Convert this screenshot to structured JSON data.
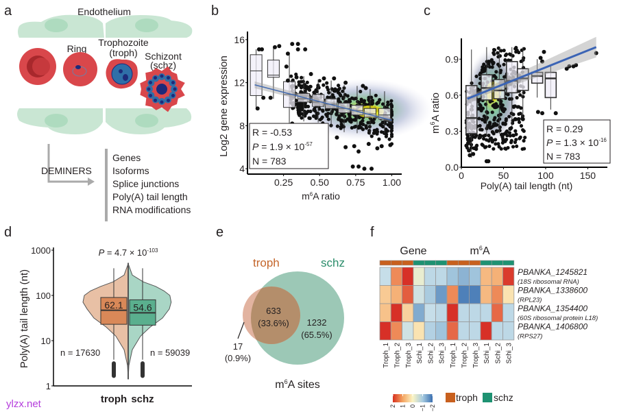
{
  "panels": {
    "a": {
      "label": "a",
      "endothelium_label": "Endothelium",
      "stages": [
        {
          "name": "uninfected",
          "label": ""
        },
        {
          "name": "ring",
          "label": "Ring"
        },
        {
          "name": "troph",
          "label": "Trophozoite",
          "sublabel": "(troph)"
        },
        {
          "name": "schz",
          "label": "Schizont",
          "sublabel": "(schz)"
        }
      ],
      "method_label": "DEMINERS",
      "outputs": [
        "Genes",
        "Isoforms",
        "Splice junctions",
        "Poly(A) tail length",
        "RNA modifications"
      ],
      "colors": {
        "endothelium": "#c9e6d3",
        "nucleus": "#a8d8b7",
        "rbc": "#d9474b",
        "parasite": "#2f6fa8",
        "arrow": "#aaaaaa"
      }
    },
    "b": {
      "label": "b"
    },
    "c": {
      "label": "c"
    },
    "d": {
      "label": "d"
    },
    "e": {
      "label": "e"
    },
    "f": {
      "label": "f"
    }
  },
  "watermark": "ylzx.net",
  "chart_data": [
    {
      "panel": "b",
      "type": "scatter",
      "xlabel": "m6A ratio",
      "xlabel_parts": {
        "pre": "m",
        "sup": "6",
        "post": "A ratio"
      },
      "ylabel": "Log2 gene expression",
      "xlim": [
        0.0,
        1.05
      ],
      "ylim": [
        3.5,
        16.5
      ],
      "xticks": [
        0.25,
        0.5,
        0.75,
        1.0
      ],
      "xtick_labels": [
        "0.25",
        "0.50",
        "0.75",
        "1.00"
      ],
      "yticks": [
        4,
        8,
        12,
        16
      ],
      "ytick_labels": [
        "4",
        "8",
        "12",
        "16"
      ],
      "boxes": [
        {
          "x": 0.06,
          "q1": 10.8,
          "median": 13.1,
          "q3": 14.6,
          "low": 9.5,
          "high": 15.1
        },
        {
          "x": 0.18,
          "q1": 12.5,
          "median": 12.7,
          "q3": 14.1,
          "low": 10.5,
          "high": 15.3
        },
        {
          "x": 0.29,
          "q1": 9.7,
          "median": 10.9,
          "q3": 12.1,
          "low": 8.2,
          "high": 14.7
        },
        {
          "x": 0.39,
          "q1": 10.2,
          "median": 10.5,
          "q3": 11.0,
          "low": 8.4,
          "high": 12.6
        },
        {
          "x": 0.49,
          "q1": 9.8,
          "median": 10.2,
          "q3": 10.9,
          "low": 8.3,
          "high": 12.3
        },
        {
          "x": 0.58,
          "q1": 9.6,
          "median": 10.0,
          "q3": 10.5,
          "low": 7.9,
          "high": 12.2
        },
        {
          "x": 0.67,
          "q1": 9.2,
          "median": 9.6,
          "q3": 10.1,
          "low": 7.4,
          "high": 11.8
        },
        {
          "x": 0.76,
          "q1": 9.0,
          "median": 9.4,
          "q3": 9.9,
          "low": 7.3,
          "high": 11.7
        },
        {
          "x": 0.85,
          "q1": 8.8,
          "median": 9.1,
          "q3": 9.6,
          "low": 7.1,
          "high": 11.4
        },
        {
          "x": 0.95,
          "q1": 8.6,
          "median": 9.0,
          "q3": 9.6,
          "low": 7.3,
          "high": 11.2
        }
      ],
      "trend": {
        "x": [
          0.05,
          1.0
        ],
        "y": [
          11.8,
          8.5
        ],
        "color": "#4169b0"
      },
      "outliers": [
        [
          0.08,
          15.1
        ],
        [
          0.1,
          15.1
        ],
        [
          0.07,
          9.6
        ],
        [
          0.11,
          10.6
        ],
        [
          0.19,
          15.3
        ],
        [
          0.16,
          10.6
        ],
        [
          0.22,
          15.4
        ],
        [
          0.31,
          15.6
        ],
        [
          0.35,
          15.6
        ],
        [
          0.35,
          15.1
        ],
        [
          0.4,
          15.1
        ],
        [
          0.28,
          14.7
        ],
        [
          0.27,
          13.5
        ],
        [
          0.28,
          12.2
        ],
        [
          0.34,
          12.5
        ],
        [
          0.44,
          12.8
        ],
        [
          0.53,
          12.4
        ],
        [
          0.6,
          12.4
        ],
        [
          0.68,
          12.0
        ],
        [
          0.8,
          11.7
        ],
        [
          0.82,
          11.5
        ],
        [
          0.35,
          9.7
        ],
        [
          0.31,
          8.2
        ],
        [
          0.5,
          7.4
        ],
        [
          0.62,
          6.9
        ],
        [
          0.68,
          6.0
        ],
        [
          0.74,
          6.1
        ],
        [
          0.77,
          5.6
        ],
        [
          0.84,
          6.3
        ],
        [
          0.9,
          5.9
        ],
        [
          0.93,
          6.1
        ],
        [
          0.99,
          6.2
        ],
        [
          0.73,
          4.2
        ],
        [
          0.77,
          4.2
        ],
        [
          0.81,
          4.0
        ],
        [
          0.86,
          4.0
        ]
      ],
      "annotation": {
        "r": "R = -0.53",
        "p_pre": " = 1.9 × 10",
        "p_exp": "-57",
        "n": "N = 783"
      }
    },
    {
      "panel": "c",
      "type": "scatter",
      "xlabel": "Poly(A) tail length (nt)",
      "ylabel": "m6A ratio",
      "ylabel_parts": {
        "pre": "m",
        "sup": "6",
        "post": "A  ratio"
      },
      "xlim": [
        0,
        170
      ],
      "ylim": [
        0.0,
        1.05
      ],
      "xticks": [
        0,
        50,
        100,
        150
      ],
      "xtick_labels": [
        "0",
        "50",
        "100",
        "150"
      ],
      "yticks": [
        0.0,
        0.3,
        0.6,
        0.9
      ],
      "ytick_labels": [
        "0.0",
        "0.3",
        "0.6",
        "0.9"
      ],
      "boxes": [
        {
          "x": 12,
          "q1": 0.28,
          "median": 0.41,
          "q3": 0.68,
          "low": 0.08,
          "high": 0.98
        },
        {
          "x": 30,
          "q1": 0.56,
          "median": 0.66,
          "q3": 0.77,
          "low": 0.26,
          "high": 1.0
        },
        {
          "x": 45,
          "q1": 0.57,
          "median": 0.64,
          "q3": 0.73,
          "low": 0.28,
          "high": 1.0
        },
        {
          "x": 60,
          "q1": 0.62,
          "median": 0.72,
          "q3": 0.88,
          "low": 0.34,
          "high": 1.0
        },
        {
          "x": 73,
          "q1": 0.64,
          "median": 0.74,
          "q3": 0.82,
          "low": 0.4,
          "high": 1.0
        },
        {
          "x": 90,
          "q1": 0.7,
          "median": 0.76,
          "q3": 0.79,
          "low": 0.58,
          "high": 0.9
        },
        {
          "x": 106,
          "q1": 0.58,
          "median": 0.74,
          "q3": 0.79,
          "low": 0.48,
          "high": 0.84
        }
      ],
      "trend": {
        "x": [
          7,
          160
        ],
        "y": [
          0.57,
          1.0
        ],
        "color": "#3b64b5"
      },
      "outliers": [
        [
          8,
          0.2
        ],
        [
          9,
          0.14
        ],
        [
          10,
          0.1
        ],
        [
          14,
          0.11
        ],
        [
          6,
          0.18
        ],
        [
          30,
          0.05
        ],
        [
          32,
          0.05
        ],
        [
          22,
          0.25
        ],
        [
          42,
          0.3
        ],
        [
          48,
          0.27
        ],
        [
          52,
          0.36
        ],
        [
          58,
          0.32
        ],
        [
          64,
          0.4
        ],
        [
          68,
          0.4
        ],
        [
          73,
          0.4
        ],
        [
          91,
          0.46
        ],
        [
          96,
          0.45
        ],
        [
          112,
          0.45
        ],
        [
          98,
          0.96
        ],
        [
          94,
          0.91
        ],
        [
          96,
          0.88
        ],
        [
          125,
          0.82
        ],
        [
          128,
          0.84
        ],
        [
          133,
          0.84
        ],
        [
          136,
          0.85
        ],
        [
          160,
          0.95
        ]
      ],
      "annotation": {
        "r": "R = 0.29",
        "p_pre": " = 1.3 × 10",
        "p_exp": "-16",
        "n": "N = 783"
      }
    },
    {
      "panel": "d",
      "type": "violin",
      "ylabel": "Poly(A) tail length (nt)",
      "yscale": "log",
      "ylim": [
        1,
        1000
      ],
      "yticks": [
        1,
        10,
        100,
        1000
      ],
      "ytick_labels": [
        "1",
        "10",
        "100",
        "1000"
      ],
      "categories": [
        "troph",
        "schz"
      ],
      "p_text": {
        "pre": " = 4.7 × 10",
        "exp": "-103"
      },
      "series": [
        {
          "name": "troph",
          "median": 62.1,
          "median_label": "62.1",
          "q1": 23,
          "q3": 90,
          "n_label": "n = 17630",
          "violin_color": "#e8c0a5",
          "box_color": "#d98858"
        },
        {
          "name": "schz",
          "median": 54.6,
          "median_label": "54.6",
          "q1": 22,
          "q3": 80,
          "n_label": "n = 59039",
          "violin_color": "#a9d6c5",
          "box_color": "#5aaf8e"
        }
      ]
    },
    {
      "panel": "e",
      "type": "venn",
      "title": "m6A sites",
      "title_parts": {
        "pre": "m",
        "sup": "6",
        "post": "A sites"
      },
      "sets": [
        {
          "name": "troph",
          "color": "#c4652a"
        },
        {
          "name": "schz",
          "color": "#2a8c6a"
        }
      ],
      "regions": [
        {
          "id": "troph_only",
          "count": "17",
          "percent": "(0.9%)"
        },
        {
          "id": "shared",
          "count": "633",
          "percent": "(33.6%)"
        },
        {
          "id": "schz_only",
          "count": "1232",
          "percent": "(65.5%)"
        }
      ]
    },
    {
      "panel": "f",
      "type": "heatmap",
      "blocks": [
        "Gene",
        "m6A"
      ],
      "blocks_parts": [
        {
          "pre": "Gene",
          "sup": "",
          "post": ""
        },
        {
          "pre": "m",
          "sup": "6",
          "post": "A"
        }
      ],
      "columns": [
        "Troph_1",
        "Troph_2",
        "Troph_3",
        "Schi_1",
        "Schi_2",
        "Schi_3"
      ],
      "column_groups": [
        "troph",
        "troph",
        "troph",
        "schz",
        "schz",
        "schz"
      ],
      "group_colors": {
        "troph": "#c8601e",
        "schz": "#1e9272"
      },
      "rows": [
        {
          "id": "PBANKA_1245821",
          "desc": "(18S ribosomal RNA)"
        },
        {
          "id": "PBANKA_1338600",
          "desc": "(RPL23)"
        },
        {
          "id": "PBANKA_1354400",
          "desc": "(60S ribosomal protein L18)"
        },
        {
          "id": "PBANKA_1406800",
          "desc": "(RPS27)"
        }
      ],
      "values_gene": [
        [
          -0.6,
          1.2,
          2.0,
          -0.2,
          -0.7,
          -0.7
        ],
        [
          0.5,
          0.8,
          1.6,
          -0.5,
          -0.9,
          -1.5
        ],
        [
          0.6,
          2.0,
          0.4,
          -1.3,
          -0.6,
          -0.7
        ],
        [
          2.0,
          1.2,
          -0.5,
          0.2,
          -0.8,
          -1.0
        ]
      ],
      "values_m6a": [
        [
          -1.0,
          -1.2,
          -1.0,
          0.7,
          0.8,
          1.9
        ],
        [
          1.2,
          -1.8,
          -1.8,
          0.7,
          1.2,
          0.2
        ],
        [
          2.0,
          -0.7,
          -0.7,
          -0.7,
          1.5,
          -0.7
        ],
        [
          1.5,
          -0.7,
          -0.7,
          2.0,
          -0.7,
          -0.7
        ]
      ],
      "colorbar": {
        "ticks": [
          2,
          1,
          0,
          -1,
          -2
        ],
        "tick_labels": [
          "2",
          "1",
          "0",
          "−1",
          "−2"
        ],
        "range": [
          2,
          -2
        ]
      },
      "legend": [
        {
          "name": "troph"
        },
        {
          "name": "schz"
        }
      ]
    }
  ]
}
